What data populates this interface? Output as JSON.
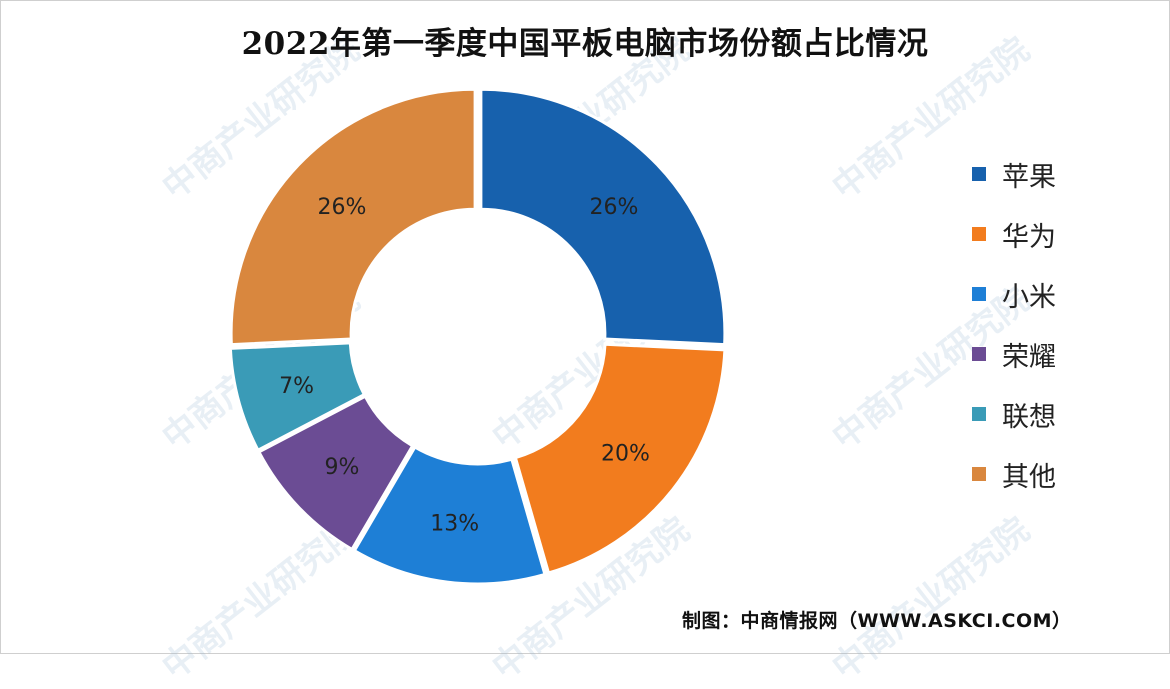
{
  "chart_data": {
    "type": "pie",
    "title": "2022年第一季度中国平板电脑市场份额占比情况",
    "donut": true,
    "legend_position": "right",
    "slices": [
      {
        "label": "苹果",
        "value": 26,
        "display": "26%",
        "color": "#1761AD"
      },
      {
        "label": "华为",
        "value": 20,
        "display": "20%",
        "color": "#F27C1E"
      },
      {
        "label": "小米",
        "value": 13,
        "display": "13%",
        "color": "#1E7FD6"
      },
      {
        "label": "荣耀",
        "value": 9,
        "display": "9%",
        "color": "#6B4C94"
      },
      {
        "label": "联想",
        "value": 7,
        "display": "7%",
        "color": "#3A9BB7"
      },
      {
        "label": "其他",
        "value": 26,
        "display": "26%",
        "color": "#D9873E"
      }
    ]
  },
  "source": "制图：中商情报网（WWW.ASKCI.COM）",
  "watermark": "中商产业研究院"
}
